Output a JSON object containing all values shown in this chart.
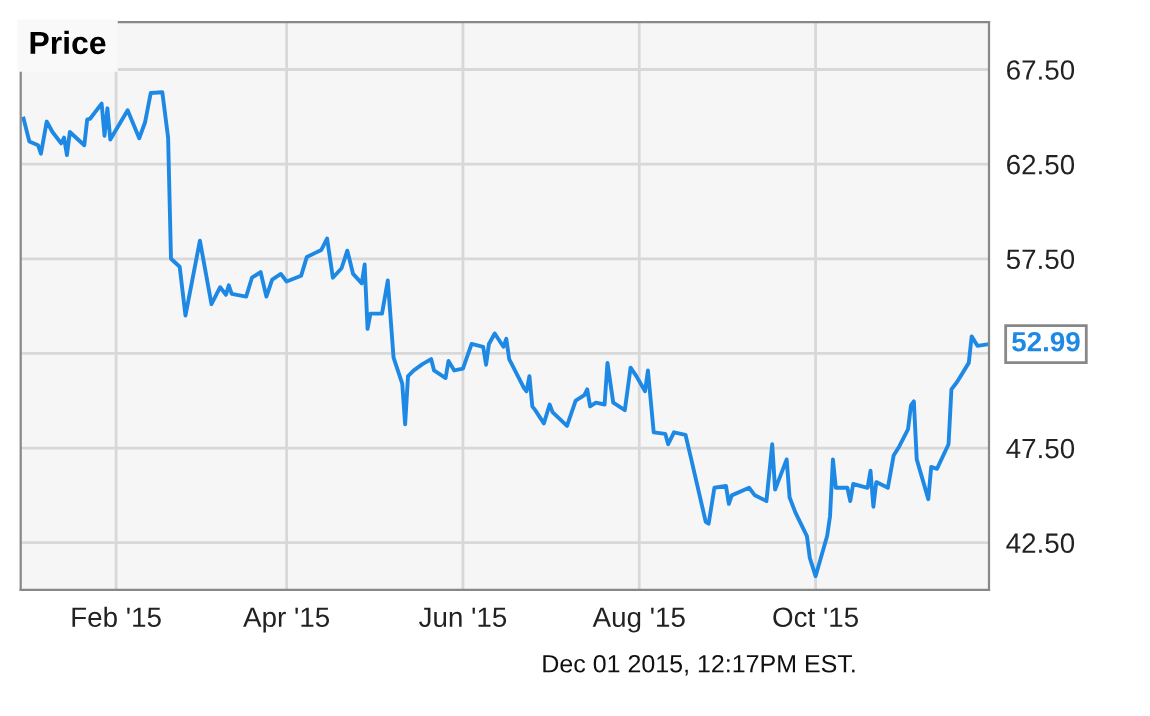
{
  "chart_data": {
    "type": "line",
    "title": "Price",
    "annotations": [
      {
        "text": "52.99",
        "x": "2015-11-30",
        "y": 52.99
      },
      "Dec 01 2015, 12:17PM EST."
    ],
    "x": [
      "2014-12-31",
      "2015-01-02",
      "2015-01-05",
      "2015-01-06",
      "2015-01-08",
      "2015-01-10",
      "2015-01-13",
      "2015-01-14",
      "2015-01-15",
      "2015-01-16",
      "2015-01-21",
      "2015-01-22",
      "2015-01-23",
      "2015-01-27",
      "2015-01-28",
      "2015-01-29",
      "2015-01-30",
      "2015-02-05",
      "2015-02-09",
      "2015-02-11",
      "2015-02-13",
      "2015-02-17",
      "2015-02-19",
      "2015-02-20",
      "2015-02-23",
      "2015-02-25",
      "2015-03-02",
      "2015-03-06",
      "2015-03-09",
      "2015-03-11",
      "2015-03-12",
      "2015-03-13",
      "2015-03-18",
      "2015-03-20",
      "2015-03-23",
      "2015-03-25",
      "2015-03-27",
      "2015-03-30",
      "2015-04-01",
      "2015-04-06",
      "2015-04-08",
      "2015-04-13",
      "2015-04-15",
      "2015-04-17",
      "2015-04-20",
      "2015-04-22",
      "2015-04-24",
      "2015-04-27",
      "2015-04-28",
      "2015-04-29",
      "2015-04-30",
      "2015-05-04",
      "2015-05-06",
      "2015-05-08",
      "2015-05-11",
      "2015-05-12",
      "2015-05-13",
      "2015-05-15",
      "2015-05-18",
      "2015-05-21",
      "2015-05-22",
      "2015-05-26",
      "2015-05-27",
      "2015-05-29",
      "2015-06-01",
      "2015-06-04",
      "2015-06-08",
      "2015-06-09",
      "2015-06-10",
      "2015-06-12",
      "2015-06-15",
      "2015-06-16",
      "2015-06-17",
      "2015-06-22",
      "2015-06-23",
      "2015-06-24",
      "2015-06-25",
      "2015-06-26",
      "2015-06-29",
      "2015-07-01",
      "2015-07-02",
      "2015-07-07",
      "2015-07-10",
      "2015-07-13",
      "2015-07-14",
      "2015-07-15",
      "2015-07-17",
      "2015-07-20",
      "2015-07-21",
      "2015-07-23",
      "2015-07-27",
      "2015-07-29",
      "2015-07-31",
      "2015-08-03",
      "2015-08-04",
      "2015-08-06",
      "2015-08-10",
      "2015-08-11",
      "2015-08-13",
      "2015-08-17",
      "2015-08-19",
      "2015-08-24",
      "2015-08-25",
      "2015-08-27",
      "2015-08-31",
      "2015-09-01",
      "2015-09-02",
      "2015-09-08",
      "2015-09-10",
      "2015-09-14",
      "2015-09-16",
      "2015-09-17",
      "2015-09-21",
      "2015-09-22",
      "2015-09-24",
      "2015-09-28",
      "2015-09-29",
      "2015-10-01",
      "2015-10-05",
      "2015-10-06",
      "2015-10-07",
      "2015-10-08",
      "2015-10-12",
      "2015-10-13",
      "2015-10-14",
      "2015-10-19",
      "2015-10-20",
      "2015-10-21",
      "2015-10-22",
      "2015-10-26",
      "2015-10-28",
      "2015-10-30",
      "2015-11-02",
      "2015-11-03",
      "2015-11-04",
      "2015-11-05",
      "2015-11-09",
      "2015-11-10",
      "2015-11-12",
      "2015-11-16",
      "2015-11-17",
      "2015-11-19",
      "2015-11-23",
      "2015-11-24",
      "2015-11-26",
      "2015-11-30"
    ],
    "series": [
      {
        "color": "#1e88e5",
        "values": [
          64.9,
          63.7,
          63.5,
          63.05,
          64.75,
          64.2,
          63.6,
          63.9,
          62.98,
          64.2,
          63.5,
          64.85,
          64.9,
          65.7,
          64.0,
          65.45,
          63.8,
          65.35,
          63.87,
          64.7,
          66.26,
          66.3,
          63.9,
          57.5,
          57.08,
          54.5,
          58.46,
          55.1,
          56.0,
          55.6,
          56.1,
          55.65,
          55.5,
          56.5,
          56.8,
          55.5,
          56.4,
          56.7,
          56.3,
          56.6,
          57.6,
          57.97,
          58.57,
          56.5,
          57.0,
          57.93,
          56.7,
          56.2,
          57.2,
          53.8,
          54.6,
          54.6,
          56.35,
          52.28,
          50.9,
          48.75,
          51.3,
          51.6,
          51.93,
          52.2,
          51.6,
          51.2,
          52.1,
          51.6,
          51.7,
          53.0,
          52.85,
          51.9,
          53.0,
          53.55,
          52.85,
          53.27,
          52.2,
          50.7,
          50.5,
          51.3,
          49.7,
          49.5,
          48.8,
          49.8,
          49.4,
          48.67,
          50.0,
          50.3,
          50.6,
          49.7,
          49.9,
          49.8,
          52.0,
          49.9,
          49.5,
          51.75,
          51.3,
          50.5,
          51.6,
          48.33,
          48.25,
          47.7,
          48.33,
          48.2,
          46.9,
          43.6,
          43.5,
          45.4,
          45.5,
          44.55,
          45.0,
          45.4,
          45.0,
          44.7,
          47.7,
          45.3,
          46.9,
          44.9,
          44.1,
          42.85,
          41.7,
          40.73,
          42.85,
          43.9,
          46.9,
          45.4,
          45.4,
          44.7,
          45.6,
          45.4,
          46.3,
          44.4,
          45.7,
          45.4,
          47.1,
          47.6,
          48.5,
          49.75,
          49.97,
          46.9,
          44.8,
          46.5,
          46.4,
          47.7,
          50.6,
          51.0,
          52.0,
          53.4,
          52.9,
          52.99
        ]
      }
    ],
    "xlim": [
      "2014-12-30",
      "2015-11-30"
    ],
    "xticks": [
      {
        "value": "2015-02-01",
        "label": "Feb '15"
      },
      {
        "value": "2015-04-01",
        "label": "Apr '15"
      },
      {
        "value": "2015-06-01",
        "label": "Jun '15"
      },
      {
        "value": "2015-08-01",
        "label": "Aug '15"
      },
      {
        "value": "2015-10-01",
        "label": "Oct '15"
      }
    ],
    "ylim": [
      40,
      70
    ],
    "yticks": [
      {
        "value": 42.5,
        "label": "42.50"
      },
      {
        "value": 47.5,
        "label": "47.50"
      },
      {
        "value": 52.5,
        "label": null
      },
      {
        "value": 57.5,
        "label": "57.50"
      },
      {
        "value": 62.5,
        "label": "62.50"
      },
      {
        "value": 67.5,
        "label": "67.50"
      }
    ],
    "grid": true,
    "legend": false,
    "marker": "none",
    "line_style": "solid"
  }
}
